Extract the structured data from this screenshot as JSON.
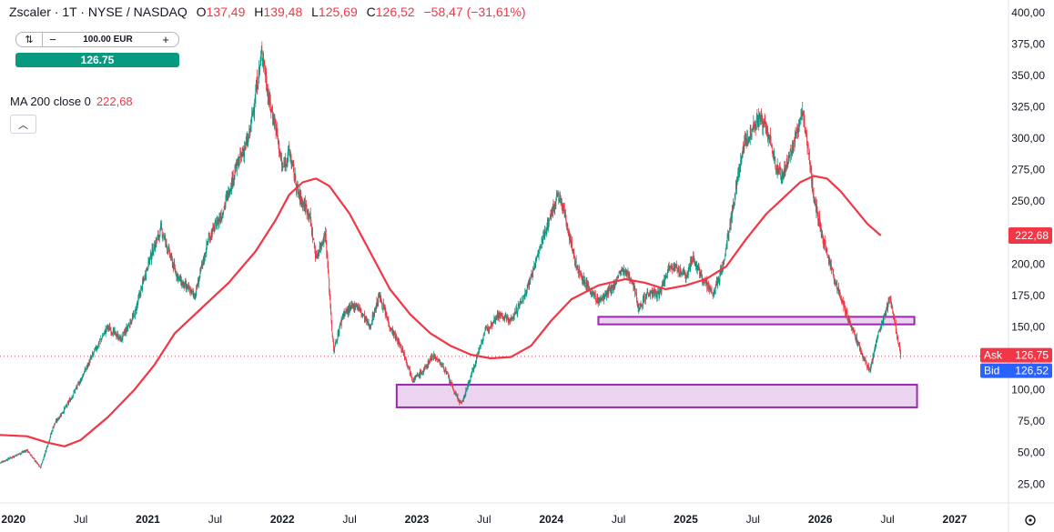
{
  "header": {
    "symbol": "Zscaler · 1T · NYSE / NASDAQ",
    "open_label": "O",
    "open": "137,49",
    "high_label": "H",
    "high": "139,48",
    "low_label": "L",
    "low": "125,69",
    "close_label": "C",
    "close": "126,52",
    "change": "−58,47 (−31,61%)"
  },
  "trade_panel": {
    "toggle_icon": "swap-icon",
    "minus": "−",
    "quantity": "100.00 EUR",
    "plus": "+",
    "price_button": "126.75"
  },
  "indicator": {
    "label": "MA 200 close 0",
    "value": "222,68",
    "collapse_icon": "chevron-up-icon"
  },
  "colors": {
    "up": "#089981",
    "down": "#f23645",
    "ma": "#f23645",
    "zone": "#9c27b0",
    "ask": "#f23645",
    "bid": "#2962ff"
  },
  "chart_data": {
    "type": "candlestick",
    "y_axis": {
      "min": 10,
      "max": 410,
      "ticks": [
        25,
        50,
        75,
        100,
        125,
        150,
        175,
        200,
        225,
        250,
        275,
        300,
        325,
        350,
        375,
        400
      ],
      "tick_labels": [
        "25,00",
        "50,00",
        "75,00",
        "100,00",
        "125,00",
        "150,00",
        "175,00",
        "200,00",
        "225,00",
        "250,00",
        "275,00",
        "300,00",
        "325,00",
        "350,00",
        "375,00",
        "400,00"
      ]
    },
    "x_axis": {
      "ticks": [
        {
          "t": 2020.0,
          "label": "2020"
        },
        {
          "t": 2020.5,
          "label": "Jul"
        },
        {
          "t": 2021.0,
          "label": "2021"
        },
        {
          "t": 2021.5,
          "label": "Jul"
        },
        {
          "t": 2022.0,
          "label": "2022"
        },
        {
          "t": 2022.5,
          "label": "Jul"
        },
        {
          "t": 2023.0,
          "label": "2023"
        },
        {
          "t": 2023.5,
          "label": "Jul"
        },
        {
          "t": 2024.0,
          "label": "2024"
        },
        {
          "t": 2024.5,
          "label": "Jul"
        },
        {
          "t": 2025.0,
          "label": "2025"
        },
        {
          "t": 2025.5,
          "label": "Jul"
        },
        {
          "t": 2026.0,
          "label": "2026"
        },
        {
          "t": 2026.5,
          "label": "Jul"
        },
        {
          "t": 2027.0,
          "label": "2027"
        }
      ],
      "start": 2019.9,
      "end": 2027.4
    },
    "price_path": [
      [
        2019.9,
        42
      ],
      [
        2020.1,
        52
      ],
      [
        2020.2,
        38
      ],
      [
        2020.3,
        72
      ],
      [
        2020.4,
        88
      ],
      [
        2020.5,
        108
      ],
      [
        2020.6,
        130
      ],
      [
        2020.7,
        150
      ],
      [
        2020.8,
        140
      ],
      [
        2020.9,
        160
      ],
      [
        2021.0,
        200
      ],
      [
        2021.05,
        215
      ],
      [
        2021.1,
        228
      ],
      [
        2021.2,
        195
      ],
      [
        2021.25,
        185
      ],
      [
        2021.35,
        175
      ],
      [
        2021.45,
        220
      ],
      [
        2021.55,
        240
      ],
      [
        2021.65,
        275
      ],
      [
        2021.75,
        300
      ],
      [
        2021.85,
        370
      ],
      [
        2021.9,
        330
      ],
      [
        2021.95,
        310
      ],
      [
        2022.0,
        275
      ],
      [
        2022.05,
        290
      ],
      [
        2022.12,
        255
      ],
      [
        2022.2,
        240
      ],
      [
        2022.25,
        205
      ],
      [
        2022.32,
        225
      ],
      [
        2022.38,
        130
      ],
      [
        2022.45,
        160
      ],
      [
        2022.55,
        168
      ],
      [
        2022.65,
        150
      ],
      [
        2022.72,
        175
      ],
      [
        2022.8,
        150
      ],
      [
        2022.9,
        130
      ],
      [
        2022.97,
        108
      ],
      [
        2023.05,
        115
      ],
      [
        2023.12,
        128
      ],
      [
        2023.2,
        118
      ],
      [
        2023.28,
        98
      ],
      [
        2023.33,
        88
      ],
      [
        2023.4,
        110
      ],
      [
        2023.5,
        145
      ],
      [
        2023.6,
        160
      ],
      [
        2023.7,
        155
      ],
      [
        2023.8,
        175
      ],
      [
        2023.88,
        200
      ],
      [
        2023.96,
        228
      ],
      [
        2024.05,
        255
      ],
      [
        2024.1,
        240
      ],
      [
        2024.18,
        200
      ],
      [
        2024.25,
        185
      ],
      [
        2024.35,
        170
      ],
      [
        2024.45,
        180
      ],
      [
        2024.52,
        195
      ],
      [
        2024.6,
        188
      ],
      [
        2024.65,
        165
      ],
      [
        2024.72,
        178
      ],
      [
        2024.8,
        175
      ],
      [
        2024.88,
        200
      ],
      [
        2024.95,
        195
      ],
      [
        2025.0,
        190
      ],
      [
        2025.05,
        205
      ],
      [
        2025.12,
        190
      ],
      [
        2025.2,
        175
      ],
      [
        2025.28,
        200
      ],
      [
        2025.35,
        245
      ],
      [
        2025.42,
        290
      ],
      [
        2025.5,
        310
      ],
      [
        2025.56,
        315
      ],
      [
        2025.62,
        300
      ],
      [
        2025.68,
        275
      ],
      [
        2025.72,
        270
      ],
      [
        2025.8,
        295
      ],
      [
        2025.87,
        320
      ],
      [
        2025.9,
        300
      ],
      [
        2025.95,
        255
      ],
      [
        2026.02,
        220
      ],
      [
        2026.1,
        190
      ],
      [
        2026.18,
        165
      ],
      [
        2026.25,
        145
      ],
      [
        2026.32,
        125
      ],
      [
        2026.37,
        115
      ],
      [
        2026.42,
        140
      ],
      [
        2026.48,
        160
      ],
      [
        2026.52,
        175
      ],
      [
        2026.56,
        150
      ],
      [
        2026.6,
        126.52
      ]
    ],
    "ma200": [
      [
        2019.9,
        64
      ],
      [
        2020.1,
        63
      ],
      [
        2020.25,
        58
      ],
      [
        2020.38,
        55
      ],
      [
        2020.5,
        60
      ],
      [
        2020.7,
        78
      ],
      [
        2020.9,
        100
      ],
      [
        2021.05,
        120
      ],
      [
        2021.2,
        145
      ],
      [
        2021.4,
        165
      ],
      [
        2021.6,
        185
      ],
      [
        2021.8,
        210
      ],
      [
        2021.95,
        235
      ],
      [
        2022.05,
        255
      ],
      [
        2022.15,
        265
      ],
      [
        2022.25,
        268
      ],
      [
        2022.35,
        262
      ],
      [
        2022.5,
        240
      ],
      [
        2022.65,
        210
      ],
      [
        2022.8,
        180
      ],
      [
        2022.95,
        160
      ],
      [
        2023.1,
        145
      ],
      [
        2023.25,
        135
      ],
      [
        2023.4,
        128
      ],
      [
        2023.55,
        125
      ],
      [
        2023.7,
        126
      ],
      [
        2023.85,
        135
      ],
      [
        2024.0,
        155
      ],
      [
        2024.15,
        172
      ],
      [
        2024.35,
        183
      ],
      [
        2024.55,
        188
      ],
      [
        2024.7,
        185
      ],
      [
        2024.85,
        180
      ],
      [
        2025.0,
        183
      ],
      [
        2025.15,
        188
      ],
      [
        2025.3,
        198
      ],
      [
        2025.45,
        220
      ],
      [
        2025.6,
        240
      ],
      [
        2025.75,
        255
      ],
      [
        2025.85,
        265
      ],
      [
        2025.95,
        270
      ],
      [
        2026.05,
        268
      ],
      [
        2026.15,
        258
      ],
      [
        2026.25,
        245
      ],
      [
        2026.35,
        232
      ],
      [
        2026.45,
        222.68
      ]
    ],
    "zones": [
      {
        "t0": 2024.35,
        "t1": 2026.7,
        "low": 152,
        "high": 158
      },
      {
        "t0": 2022.85,
        "t1": 2026.72,
        "low": 86,
        "high": 104
      }
    ],
    "last_price": 126.52,
    "price_tags": [
      {
        "label": "222,68",
        "value": 222.68,
        "color": "#f23645"
      },
      {
        "label": "Ask",
        "price": "126,75",
        "value": 126.75,
        "color": "#f23645"
      },
      {
        "label": "Bid",
        "price": "126,52",
        "value": 126.52,
        "color": "#2962ff"
      }
    ],
    "gear_icon": "gear-icon"
  }
}
